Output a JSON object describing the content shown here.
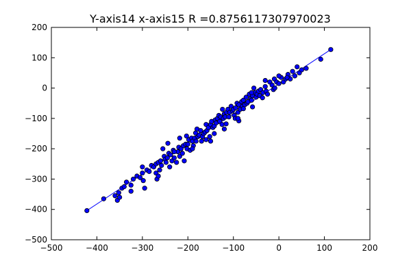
{
  "chart_data": {
    "type": "scatter",
    "title": "Y-axis14  x-axis15  R =0.8756117307970023",
    "xlabel": "",
    "ylabel": "",
    "xlim": [
      -500,
      200
    ],
    "ylim": [
      -500,
      200
    ],
    "xticks": [
      -500,
      -400,
      -300,
      -200,
      -100,
      0,
      100,
      200
    ],
    "yticks": [
      -500,
      -400,
      -300,
      -200,
      -100,
      0,
      100,
      200
    ],
    "xtick_labels": [
      "−500",
      "−400",
      "−300",
      "−200",
      "−100",
      "0",
      "100",
      "200"
    ],
    "ytick_labels": [
      "−500",
      "−400",
      "−300",
      "−200",
      "−100",
      "0",
      "100",
      "200"
    ],
    "grid": false,
    "colors": {
      "marker": "#0000ff",
      "line": "#0000ff",
      "marker_edge": "#000000"
    },
    "fit_line": {
      "x": [
        -422,
        114
      ],
      "y": [
        -404,
        127
      ]
    },
    "points": [
      [
        -422,
        -404
      ],
      [
        -385,
        -365
      ],
      [
        -360,
        -355
      ],
      [
        -355,
        -370
      ],
      [
        -350,
        -360
      ],
      [
        -352,
        -345
      ],
      [
        -345,
        -330
      ],
      [
        -340,
        -325
      ],
      [
        -335,
        -310
      ],
      [
        -325,
        -320
      ],
      [
        -320,
        -300
      ],
      [
        -312,
        -290
      ],
      [
        -305,
        -295
      ],
      [
        -300,
        -280
      ],
      [
        -295,
        -330
      ],
      [
        -290,
        -270
      ],
      [
        -285,
        -275
      ],
      [
        -280,
        -255
      ],
      [
        -275,
        -260
      ],
      [
        -270,
        -250
      ],
      [
        -268,
        -300
      ],
      [
        -265,
        -245
      ],
      [
        -262,
        -270
      ],
      [
        -260,
        -240
      ],
      [
        -258,
        -255
      ],
      [
        -255,
        -200
      ],
      [
        -252,
        -225
      ],
      [
        -250,
        -235
      ],
      [
        -248,
        -245
      ],
      [
        -245,
        -230
      ],
      [
        -242,
        -215
      ],
      [
        -240,
        -260
      ],
      [
        -238,
        -220
      ],
      [
        -235,
        -240
      ],
      [
        -232,
        -205
      ],
      [
        -230,
        -230
      ],
      [
        -225,
        -245
      ],
      [
        -222,
        -210
      ],
      [
        -220,
        -195
      ],
      [
        -218,
        -225
      ],
      [
        -215,
        -200
      ],
      [
        -212,
        -215
      ],
      [
        -210,
        -190
      ],
      [
        -208,
        -240
      ],
      [
        -205,
        -185
      ],
      [
        -202,
        -200
      ],
      [
        -200,
        -185
      ],
      [
        -198,
        -170
      ],
      [
        -195,
        -205
      ],
      [
        -192,
        -165
      ],
      [
        -190,
        -175
      ],
      [
        -188,
        -190
      ],
      [
        -185,
        -165
      ],
      [
        -182,
        -175
      ],
      [
        -180,
        -135
      ],
      [
        -178,
        -160
      ],
      [
        -175,
        -155
      ],
      [
        -172,
        -140
      ],
      [
        -170,
        -175
      ],
      [
        -168,
        -160
      ],
      [
        -165,
        -150
      ],
      [
        -162,
        -145
      ],
      [
        -160,
        -120
      ],
      [
        -158,
        -140
      ],
      [
        -155,
        -130
      ],
      [
        -152,
        -160
      ],
      [
        -150,
        -120
      ],
      [
        -148,
        -110
      ],
      [
        -145,
        -130
      ],
      [
        -142,
        -125
      ],
      [
        -140,
        -105
      ],
      [
        -138,
        -115
      ],
      [
        -135,
        -100
      ],
      [
        -132,
        -90
      ],
      [
        -130,
        -110
      ],
      [
        -128,
        -95
      ],
      [
        -125,
        -120
      ],
      [
        -122,
        -100
      ],
      [
        -120,
        -85
      ],
      [
        -118,
        -95
      ],
      [
        -115,
        -80
      ],
      [
        -112,
        -70
      ],
      [
        -110,
        -95
      ],
      [
        -108,
        -80
      ],
      [
        -105,
        -60
      ],
      [
        -102,
        -75
      ],
      [
        -100,
        -70
      ],
      [
        -98,
        -90
      ],
      [
        -95,
        -65
      ],
      [
        -92,
        -50
      ],
      [
        -90,
        -80
      ],
      [
        -88,
        -55
      ],
      [
        -85,
        -70
      ],
      [
        -82,
        -45
      ],
      [
        -80,
        -60
      ],
      [
        -78,
        -40
      ],
      [
        -75,
        -55
      ],
      [
        -72,
        -30
      ],
      [
        -70,
        -50
      ],
      [
        -68,
        -45
      ],
      [
        -65,
        -20
      ],
      [
        -62,
        -35
      ],
      [
        -60,
        -40
      ],
      [
        -58,
        -25
      ],
      [
        -55,
        0
      ],
      [
        -52,
        -15
      ],
      [
        -50,
        -30
      ],
      [
        -48,
        -20
      ],
      [
        -45,
        -10
      ],
      [
        -42,
        -25
      ],
      [
        -40,
        -5
      ],
      [
        -35,
        -15
      ],
      [
        -30,
        5
      ],
      [
        -28,
        -10
      ],
      [
        -25,
        -20
      ],
      [
        -20,
        20
      ],
      [
        -15,
        10
      ],
      [
        -12,
        -5
      ],
      [
        -10,
        30
      ],
      [
        -5,
        20
      ],
      [
        0,
        15
      ],
      [
        5,
        35
      ],
      [
        10,
        20
      ],
      [
        15,
        30
      ],
      [
        20,
        45
      ],
      [
        25,
        30
      ],
      [
        30,
        55
      ],
      [
        35,
        40
      ],
      [
        40,
        70
      ],
      [
        45,
        50
      ],
      [
        50,
        60
      ],
      [
        60,
        65
      ],
      [
        92,
        95
      ],
      [
        114,
        127
      ],
      [
        -218,
        -165
      ],
      [
        -183,
        -148
      ],
      [
        -160,
        -170
      ],
      [
        -124,
        -70
      ],
      [
        -96,
        -100
      ],
      [
        -78,
        -68
      ],
      [
        -270,
        -280
      ],
      [
        -298,
        -305
      ],
      [
        -325,
        -340
      ],
      [
        -244,
        -182
      ],
      [
        -203,
        -158
      ],
      [
        -142,
        -150
      ],
      [
        -116,
        -118
      ],
      [
        -88,
        -108
      ],
      [
        -58,
        -62
      ],
      [
        -36,
        -32
      ],
      [
        -9,
        0
      ],
      [
        -300,
        -260
      ],
      [
        -265,
        -290
      ],
      [
        -230,
        -210
      ],
      [
        -190,
        -200
      ],
      [
        -150,
        -175
      ],
      [
        -120,
        -135
      ],
      [
        -90,
        -100
      ],
      [
        -60,
        -15
      ],
      [
        -30,
        25
      ],
      [
        0,
        40
      ],
      [
        18,
        35
      ]
    ]
  }
}
